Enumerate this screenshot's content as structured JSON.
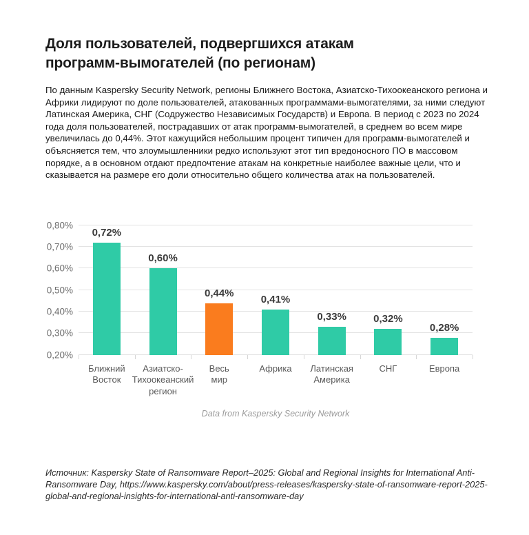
{
  "title_lines": [
    "Доля пользователей, подвергшихся атакам",
    "программ-вымогателей (по регионам)"
  ],
  "intro": "По данным Kaspersky Security Network, регионы Ближнего Востока, Азиатско-Тихоокеанского региона и Африки лидируют по доле пользователей, атакованных программами-вымогателями, за ними следуют Латинская Америка, СНГ (Содружество Независимых Государств) и Европа. В период с 2023 по 2024 года доля пользователей, пострадавших от атак программ-вымогателей, в среднем во всем мире увеличилась до 0,44%. Этот кажущийся небольшим процент типичен для программ-вымогателей и объясняется тем, что злоумышленники редко используют этот тип вредоносного ПО в массовом порядке, а в основном отдают предпочтение атакам на конкретные наиболее важные цели, что и сказывается на размере его доли относительно общего количества атак на пользователей.",
  "chart_data": {
    "type": "bar",
    "title": "Доля пользователей, подвергшихся атакам программ-вымогателей (по регионам)",
    "categories": [
      "Ближний Восток",
      "Азиатско-Тихоокеанский регион",
      "Весь мир",
      "Африка",
      "Латинская Америка",
      "СНГ",
      "Европа"
    ],
    "categories_lines": [
      [
        "Ближний",
        "Восток"
      ],
      [
        "Азиатско-",
        "Тихоокеанский",
        "регион"
      ],
      [
        "Весь",
        "мир"
      ],
      [
        "Африка"
      ],
      [
        "Латинская",
        "Америка"
      ],
      [
        "СНГ"
      ],
      [
        "Европа"
      ]
    ],
    "values": [
      0.72,
      0.6,
      0.44,
      0.41,
      0.33,
      0.32,
      0.28
    ],
    "value_labels": [
      "0,72%",
      "0,60%",
      "0,44%",
      "0,41%",
      "0,33%",
      "0,32%",
      "0,28%"
    ],
    "bar_colors": [
      "#2fcba6",
      "#2fcba6",
      "#fa7c1e",
      "#2fcba6",
      "#2fcba6",
      "#2fcba6",
      "#2fcba6"
    ],
    "highlight_index": 2,
    "xlabel": "",
    "ylabel": "",
    "ylim": [
      0.2,
      0.8
    ],
    "yticks": [
      "0,20%",
      "0,30%",
      "0,40%",
      "0,50%",
      "0,60%",
      "0,70%",
      "0,80%"
    ],
    "grid": true,
    "legend": "none",
    "caption": "Data from Kaspersky Security Network"
  },
  "colors": {
    "bar_default": "#2fcba6",
    "bar_highlight": "#fa7c1e",
    "gridline": "#e3e3e3"
  },
  "source": "Источник: Kaspersky State of Ransomware Report–2025: Global and Regional Insights for International Anti-Ransomware Day, https://www.kaspersky.com/about/press-releases/kaspersky-state-of-ransomware-report-2025-global-and-regional-insights-for-international-anti-ransomware-day"
}
